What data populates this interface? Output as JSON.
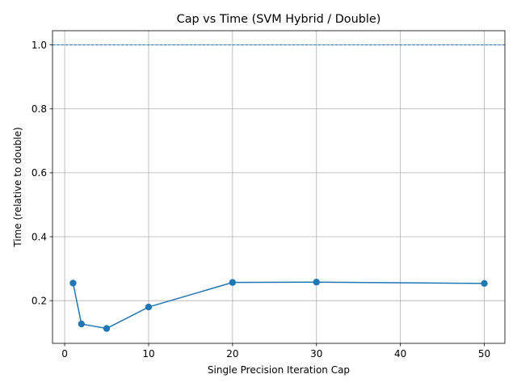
{
  "chart_data": {
    "type": "line",
    "title": "Cap vs Time (SVM Hybrid / Double)",
    "xlabel": "Single Precision Iteration Cap",
    "ylabel": "Time (relative to double)",
    "xlim": [
      -1.45,
      52.45
    ],
    "ylim": [
      0.0665,
      1.0445
    ],
    "xticks": [
      0,
      10,
      20,
      30,
      40,
      50
    ],
    "xtick_labels": [
      "0",
      "10",
      "20",
      "30",
      "40",
      "50"
    ],
    "yticks": [
      0.2,
      0.4,
      0.6,
      0.8,
      1.0
    ],
    "ytick_labels": [
      "0.2",
      "0.4",
      "0.6",
      "0.8",
      "1.0"
    ],
    "grid": true,
    "series": [
      {
        "x": [
          1,
          2,
          5,
          10,
          20,
          30,
          50
        ],
        "y": [
          0.255,
          0.127,
          0.113,
          0.18,
          0.257,
          0.258,
          0.254
        ],
        "color": "#1f77b4",
        "marker": "circle"
      }
    ],
    "reference_line": {
      "y": 1.0,
      "style": "dashed",
      "color": "#1f77b4"
    }
  }
}
